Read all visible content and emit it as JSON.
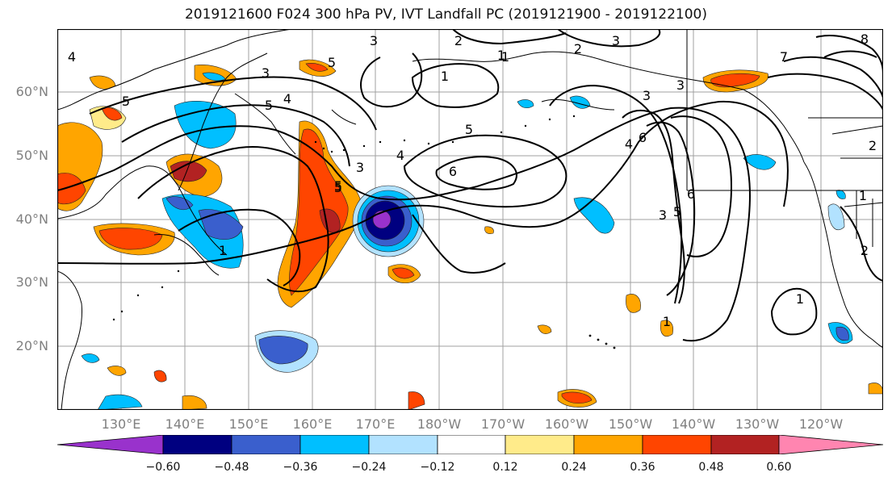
{
  "title": "2019121600 F024 300 hPa PV, IVT Landfall PC (2019121900 - 2019122100)",
  "lat_labels": [
    "60°N",
    "50°N",
    "40°N",
    "30°N",
    "20°N"
  ],
  "lon_labels": [
    "130°E",
    "140°E",
    "150°E",
    "160°E",
    "170°E",
    "180°W",
    "170°W",
    "160°W",
    "150°W",
    "140°W",
    "130°W",
    "120°W"
  ],
  "colorbar": {
    "colors": [
      "#9932CC",
      "#000080",
      "#3A5FCD",
      "#00BFFF",
      "#B2E2FF",
      "#FFFFFF",
      "#FFEB8A",
      "#FFA500",
      "#FF4500",
      "#B22222",
      "#FF85B0"
    ],
    "ticks": [
      "−0.60",
      "−0.48",
      "−0.36",
      "−0.24",
      "−0.12",
      "0.12",
      "0.24",
      "0.36",
      "0.48",
      "0.60"
    ]
  },
  "contour_labels": [
    "4",
    "5",
    "3",
    "5",
    "4",
    "3",
    "5",
    "5",
    "3",
    "2",
    "3",
    "1",
    "2",
    "1",
    "5",
    "6",
    "4",
    "3",
    "5",
    "3",
    "6",
    "4",
    "6",
    "5",
    "3",
    "1",
    "1",
    "1",
    "2",
    "1",
    "2",
    "7",
    "8",
    "1"
  ]
}
